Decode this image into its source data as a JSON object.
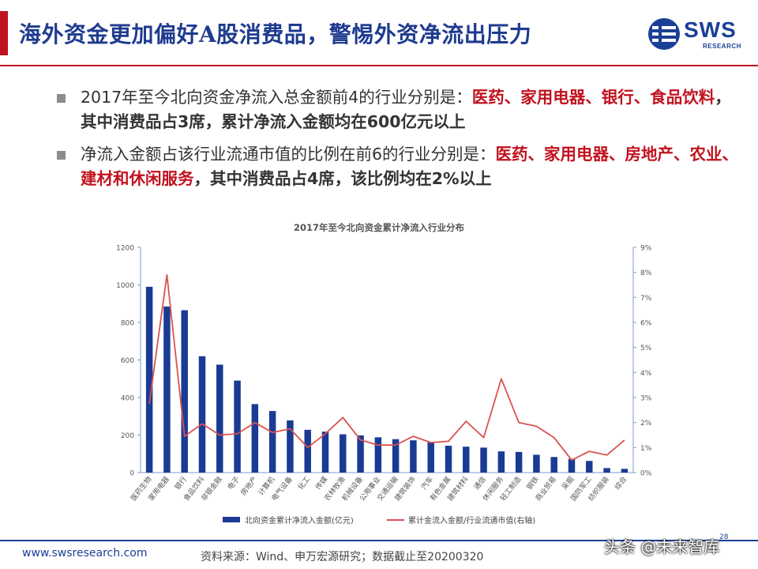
{
  "title": "海外资金更加偏好A股消费品，警惕外资净流出压力",
  "logo": {
    "main": "SWS",
    "sub": "RESEARCH"
  },
  "bullets": [
    {
      "segments": [
        {
          "text": "2017年至今北向资金净流入总金额前4的行业分别是：",
          "style": "plain"
        },
        {
          "text": "医药、家用电器、银行、食品饮料",
          "style": "highlight"
        },
        {
          "text": "，其中消费品占3席，累计净流入金额均在600亿元以上",
          "style": "bold"
        }
      ]
    },
    {
      "segments": [
        {
          "text": "净流入金额占该行业流通市值的比例在前6的行业分别是：",
          "style": "plain"
        },
        {
          "text": "医药、家用电器、房地产、农业、建材和休闲服务",
          "style": "highlight"
        },
        {
          "text": "，其中消费品占4席，该比例均在2%以上",
          "style": "bold"
        }
      ]
    }
  ],
  "chart_data": {
    "type": "bar",
    "title": "2017年至今北向资金累计净流入行业分布",
    "categories": [
      "医药生物",
      "家用电器",
      "银行",
      "食品饮料",
      "非银金融",
      "电子",
      "房地产",
      "计算机",
      "电气设备",
      "化工",
      "传媒",
      "农林牧渔",
      "机械设备",
      "公用事业",
      "交通运输",
      "建筑装饰",
      "汽车",
      "有色金属",
      "建筑材料",
      "通信",
      "休闲服务",
      "轻工制造",
      "钢铁",
      "商业贸易",
      "采掘",
      "国防军工",
      "纺织服装",
      "综合"
    ],
    "ylim": [
      0,
      1200
    ],
    "yticks": [
      0,
      200,
      400,
      600,
      800,
      1000,
      1200
    ],
    "y2lim": [
      0,
      9
    ],
    "y2ticks": [
      "0%",
      "1%",
      "2%",
      "3%",
      "4%",
      "5%",
      "6%",
      "7%",
      "8%",
      "9%"
    ],
    "series": [
      {
        "name": "北向资金累计净流入金额(亿元)",
        "type": "bar",
        "color": "#1a3a94",
        "axis": "left",
        "values": [
          990,
          885,
          865,
          620,
          575,
          490,
          365,
          328,
          278,
          228,
          218,
          204,
          198,
          188,
          178,
          172,
          162,
          143,
          138,
          133,
          113,
          110,
          95,
          83,
          73,
          62,
          24,
          20
        ]
      },
      {
        "name": "累计金流入金额/行业流通市值(右轴)",
        "type": "line",
        "color": "#d9534f",
        "axis": "right",
        "values": [
          2.75,
          7.9,
          1.45,
          1.95,
          1.5,
          1.55,
          2.0,
          1.6,
          1.75,
          1.0,
          1.55,
          2.2,
          1.3,
          1.1,
          1.1,
          1.45,
          1.2,
          1.25,
          2.05,
          1.4,
          3.75,
          2.0,
          1.85,
          1.4,
          0.5,
          0.85,
          0.7,
          1.3
        ]
      }
    ],
    "legend_position": "bottom"
  },
  "footer": {
    "url": "www.swsresearch.com",
    "source": "资料来源：Wind、申万宏源研究；数据截止至20200320",
    "page": "28",
    "watermark": "头条 @未来智库"
  },
  "colors": {
    "accent_red": "#c1121f",
    "brand_blue": "#1b3f95",
    "bar_blue": "#1a3a94",
    "line_red": "#d9534f"
  }
}
